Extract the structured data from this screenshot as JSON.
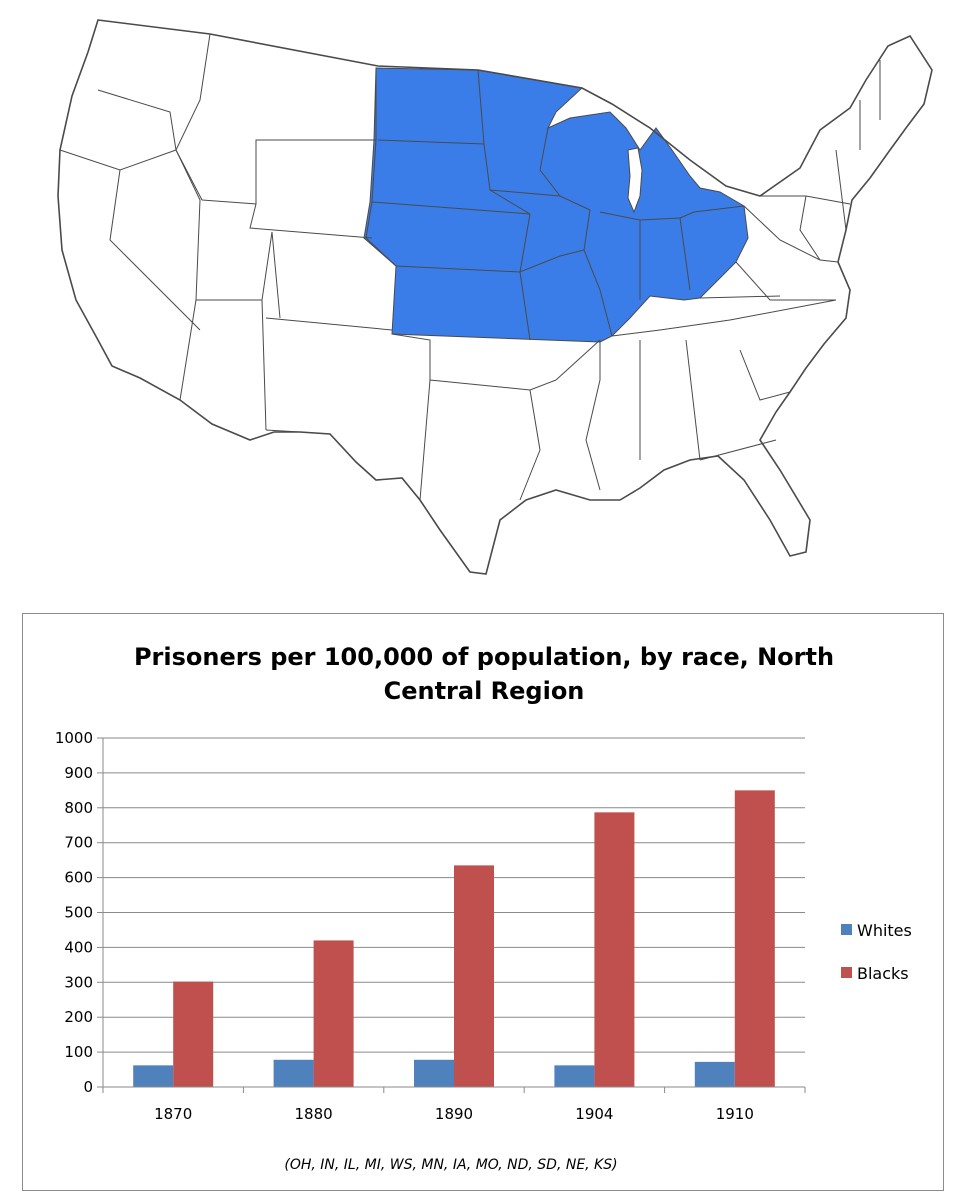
{
  "map": {
    "highlight_color": "#3b7de8",
    "border_color": "#4a4a4a"
  },
  "chart_data": {
    "type": "bar",
    "title_lines": [
      "Prisoners per 100,000 of population, by race, North",
      "Central Region"
    ],
    "categories": [
      "1870",
      "1880",
      "1890",
      "1904",
      "1910"
    ],
    "series": [
      {
        "name": "Whites",
        "color": "#4f81bd",
        "values": [
          62,
          78,
          78,
          62,
          72
        ]
      },
      {
        "name": "Blacks",
        "color": "#c0504d",
        "values": [
          302,
          420,
          635,
          787,
          850
        ]
      }
    ],
    "ylim": [
      0,
      1000
    ],
    "yticks": [
      0,
      100,
      200,
      300,
      400,
      500,
      600,
      700,
      800,
      900,
      1000
    ],
    "grid": true,
    "legend_position": "right",
    "footnote": "(OH, IN, IL, MI, WS, MN, IA, MO, ND, SD, NE, KS)"
  }
}
